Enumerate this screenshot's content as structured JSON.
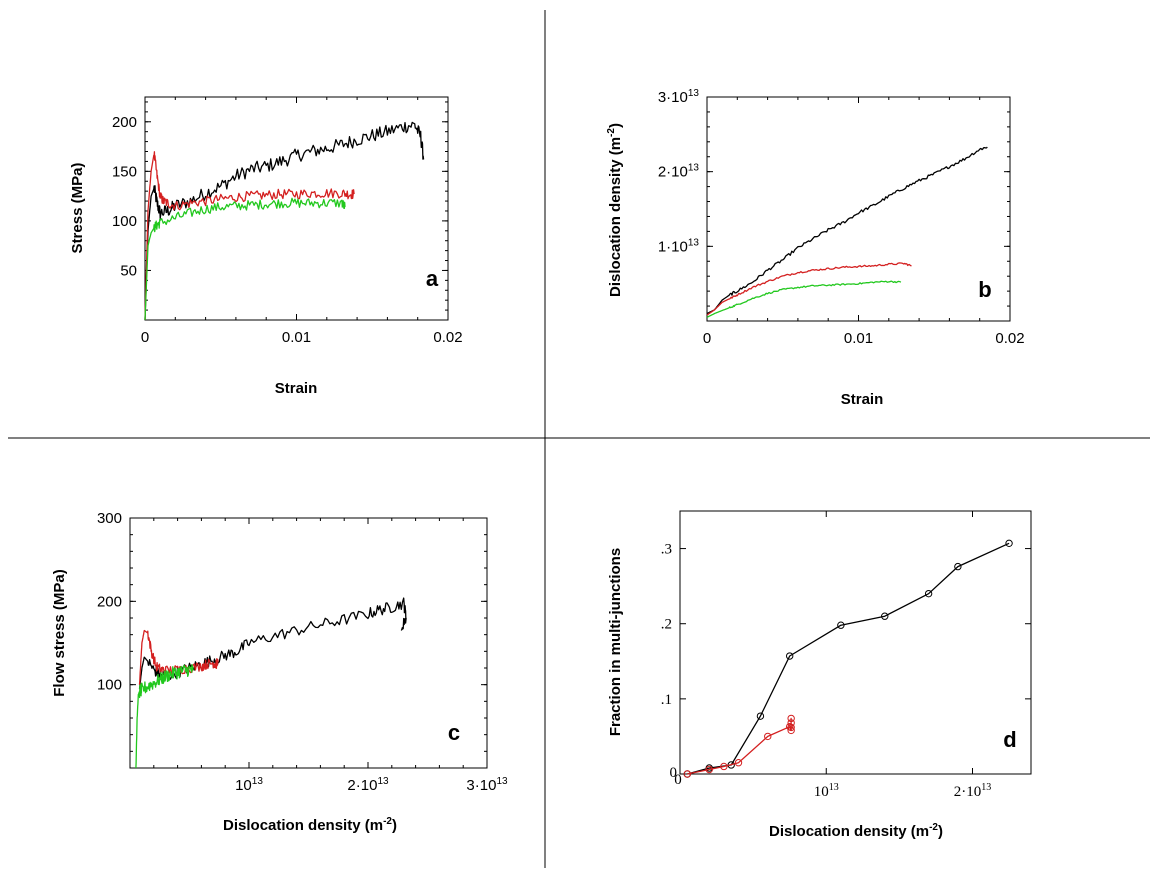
{
  "chart_data": [
    {
      "panel": "a",
      "type": "line",
      "xlabel": "Strain",
      "ylabel": "Stress (MPa)",
      "xlim": [
        0,
        0.02
      ],
      "ylim": [
        0,
        225
      ],
      "xticks": [
        {
          "v": 0,
          "label": "0"
        },
        {
          "v": 0.01,
          "label": "0.01"
        },
        {
          "v": 0.02,
          "label": "0.02"
        }
      ],
      "yticks": [
        {
          "v": 50,
          "label": "50"
        },
        {
          "v": 100,
          "label": "100"
        },
        {
          "v": 150,
          "label": "150"
        },
        {
          "v": 200,
          "label": "200"
        }
      ],
      "grid": false,
      "colors": {
        "black": "#000000",
        "red": "#d42020",
        "green": "#22c81e"
      },
      "series": [
        {
          "color": "#000000",
          "noise": 7,
          "x": [
            0,
            0.0002,
            0.0004,
            0.0006,
            0.0008,
            0.001,
            0.0015,
            0.002,
            0.003,
            0.004,
            0.005,
            0.006,
            0.007,
            0.008,
            0.009,
            0.01,
            0.011,
            0.012,
            0.013,
            0.014,
            0.015,
            0.016,
            0.017,
            0.0178,
            0.0182,
            0.0184
          ],
          "y": [
            0,
            90,
            125,
            133,
            118,
            108,
            110,
            115,
            120,
            128,
            135,
            145,
            152,
            155,
            160,
            166,
            170,
            173,
            177,
            182,
            186,
            190,
            195,
            197,
            185,
            162
          ]
        },
        {
          "color": "#d42020",
          "noise": 5,
          "x": [
            0,
            0.0002,
            0.0004,
            0.0006,
            0.0008,
            0.001,
            0.0012,
            0.0015,
            0.002,
            0.003,
            0.004,
            0.005,
            0.006,
            0.007,
            0.008,
            0.009,
            0.01,
            0.011,
            0.012,
            0.013,
            0.0135,
            0.0138
          ],
          "y": [
            0,
            110,
            150,
            168,
            145,
            125,
            120,
            118,
            115,
            118,
            120,
            122,
            124,
            125,
            126,
            127,
            127,
            128,
            128,
            128,
            127,
            127
          ]
        },
        {
          "color": "#22c81e",
          "noise": 5,
          "x": [
            0,
            0.0002,
            0.0004,
            0.0006,
            0.0008,
            0.001,
            0.002,
            0.003,
            0.004,
            0.005,
            0.006,
            0.007,
            0.008,
            0.009,
            0.01,
            0.011,
            0.012,
            0.013,
            0.0132
          ],
          "y": [
            0,
            75,
            88,
            93,
            96,
            98,
            103,
            108,
            112,
            114,
            115,
            116,
            117,
            118,
            118,
            118,
            118,
            118,
            114
          ]
        }
      ]
    },
    {
      "panel": "b",
      "type": "line",
      "xlabel": "Strain",
      "ylabel": "Dislocation density (m⁻²)",
      "xlim": [
        0,
        0.02
      ],
      "ylim": [
        0,
        30000000000000.0
      ],
      "xticks": [
        {
          "v": 0,
          "label": "0"
        },
        {
          "v": 0.01,
          "label": "0.01"
        },
        {
          "v": 0.02,
          "label": "0.02"
        }
      ],
      "yticks": [
        {
          "v": 10000000000000.0,
          "label": "1·10¹³"
        },
        {
          "v": 20000000000000.0,
          "label": "2·10¹³"
        },
        {
          "v": 30000000000000.0,
          "label": "3·10¹³"
        }
      ],
      "grid": false,
      "colors": {
        "black": "#000000",
        "red": "#d42020",
        "green": "#22c81e"
      },
      "series": [
        {
          "color": "#000000",
          "noise": 200000000000.0,
          "x": [
            0,
            0.0005,
            0.001,
            0.0015,
            0.002,
            0.003,
            0.004,
            0.005,
            0.006,
            0.007,
            0.008,
            0.009,
            0.01,
            0.011,
            0.012,
            0.013,
            0.014,
            0.015,
            0.016,
            0.017,
            0.018,
            0.0185
          ],
          "y": [
            1000000000000.0,
            1500000000000.0,
            2800000000000.0,
            3500000000000.0,
            4000000000000.0,
            5200000000000.0,
            6800000000000.0,
            8200000000000.0,
            9800000000000.0,
            11000000000000.0,
            12200000000000.0,
            13200000000000.0,
            14500000000000.0,
            15500000000000.0,
            16700000000000.0,
            17800000000000.0,
            18800000000000.0,
            19700000000000.0,
            20700000000000.0,
            21700000000000.0,
            23000000000000.0,
            23300000000000.0
          ]
        },
        {
          "color": "#d42020",
          "noise": 120000000000.0,
          "x": [
            0,
            0.0005,
            0.001,
            0.0015,
            0.002,
            0.003,
            0.004,
            0.005,
            0.006,
            0.007,
            0.008,
            0.009,
            0.01,
            0.011,
            0.012,
            0.013,
            0.0135
          ],
          "y": [
            800000000000.0,
            1500000000000.0,
            2500000000000.0,
            3000000000000.0,
            3500000000000.0,
            4500000000000.0,
            5300000000000.0,
            6000000000000.0,
            6500000000000.0,
            6800000000000.0,
            7000000000000.0,
            7200000000000.0,
            7300000000000.0,
            7400000000000.0,
            7600000000000.0,
            7700000000000.0,
            7400000000000.0
          ]
        },
        {
          "color": "#22c81e",
          "noise": 100000000000.0,
          "x": [
            0,
            0.0005,
            0.001,
            0.0015,
            0.002,
            0.003,
            0.004,
            0.005,
            0.006,
            0.007,
            0.008,
            0.009,
            0.01,
            0.011,
            0.012,
            0.0128
          ],
          "y": [
            500000000000.0,
            1000000000000.0,
            1400000000000.0,
            1800000000000.0,
            2200000000000.0,
            3000000000000.0,
            3700000000000.0,
            4200000000000.0,
            4500000000000.0,
            4700000000000.0,
            4800000000000.0,
            4900000000000.0,
            5000000000000.0,
            5200000000000.0,
            5300000000000.0,
            5200000000000.0
          ]
        }
      ]
    },
    {
      "panel": "c",
      "type": "line",
      "xlabel": "Dislocation density (m⁻²)",
      "ylabel": "Flow stress (MPa)",
      "xlim": [
        0,
        30000000000000.0
      ],
      "ylim": [
        0,
        300
      ],
      "xticks": [
        {
          "v": 10000000000000.0,
          "label": "10¹³"
        },
        {
          "v": 20000000000000.0,
          "label": "2·10¹³"
        },
        {
          "v": 30000000000000.0,
          "label": "3·10¹³"
        }
      ],
      "yticks": [
        {
          "v": 100,
          "label": "100"
        },
        {
          "v": 200,
          "label": "200"
        },
        {
          "v": 300,
          "label": "300"
        }
      ],
      "grid": false,
      "colors": {
        "black": "#000000",
        "red": "#d42020",
        "green": "#22c81e"
      },
      "series": [
        {
          "color": "#000000",
          "noise": 7,
          "x": [
            800000000000.0,
            1000000000000.0,
            1200000000000.0,
            1500000000000.0,
            2000000000000.0,
            2500000000000.0,
            3000000000000.0,
            4000000000000.0,
            5000000000000.0,
            6000000000000.0,
            7000000000000.0,
            8000000000000.0,
            9000000000000.0,
            10000000000000.0,
            12000000000000.0,
            14000000000000.0,
            16000000000000.0,
            18000000000000.0,
            20000000000000.0,
            21000000000000.0,
            22000000000000.0,
            23000000000000.0,
            23200000000000.0,
            22800000000000.0
          ],
          "y": [
            95,
            120,
            133,
            128,
            118,
            112,
            110,
            115,
            120,
            125,
            130,
            135,
            140,
            150,
            158,
            165,
            172,
            178,
            185,
            190,
            193,
            198,
            182,
            165
          ]
        },
        {
          "color": "#d42020",
          "noise": 6,
          "x": [
            800000000000.0,
            1000000000000.0,
            1200000000000.0,
            1500000000000.0,
            1800000000000.0,
            2200000000000.0,
            2600000000000.0,
            3000000000000.0,
            4000000000000.0,
            5000000000000.0,
            6000000000000.0,
            6500000000000.0,
            7000000000000.0,
            7200000000000.0,
            7400000000000.0
          ],
          "y": [
            100,
            150,
            165,
            162,
            140,
            122,
            118,
            117,
            118,
            120,
            122,
            125,
            126,
            124,
            127
          ]
        },
        {
          "color": "#22c81e",
          "noise": 8,
          "x": [
            500000000000.0,
            600000000000.0,
            700000000000.0,
            800000000000.0,
            900000000000.0,
            1000000000000.0,
            1500000000000.0,
            2000000000000.0,
            2500000000000.0,
            3000000000000.0,
            3500000000000.0,
            4000000000000.0,
            4500000000000.0,
            5000000000000.0,
            5300000000000.0
          ],
          "y": [
            0,
            60,
            88,
            92,
            93,
            94,
            98,
            102,
            106,
            110,
            113,
            115,
            117,
            118,
            117
          ]
        }
      ]
    },
    {
      "panel": "d",
      "type": "line",
      "xlabel": "Dislocation density (m⁻²)",
      "ylabel": "Fraction in multi-junctions",
      "xlim": [
        0,
        24000000000000.0
      ],
      "ylim": [
        0,
        0.35
      ],
      "xticks": [
        {
          "v": 0,
          "label": "0"
        },
        {
          "v": 10000000000000.0,
          "label": "10¹³"
        },
        {
          "v": 20000000000000.0,
          "label": "2·10¹³"
        }
      ],
      "yticks": [
        {
          "v": 0,
          "label": "0"
        },
        {
          "v": 0.1,
          "label": ".1"
        },
        {
          "v": 0.2,
          "label": ".2"
        },
        {
          "v": 0.3,
          "label": ".3"
        }
      ],
      "grid": false,
      "colors": {
        "black": "#000000",
        "red": "#d42020"
      },
      "series": [
        {
          "color": "#000000",
          "marker": "circle",
          "x": [
            500000000000.0,
            2000000000000.0,
            3500000000000.0,
            5500000000000.0,
            7500000000000.0,
            11000000000000.0,
            14000000000000.0,
            17000000000000.0,
            19000000000000.0,
            22500000000000.0
          ],
          "y": [
            0,
            0.008,
            0.012,
            0.077,
            0.157,
            0.198,
            0.21,
            0.24,
            0.276,
            0.307
          ]
        },
        {
          "color": "#d42020",
          "marker": "circle",
          "x": [
            500000000000.0,
            2000000000000.0,
            3000000000000.0,
            4000000000000.0,
            6000000000000.0,
            7500000000000.0,
            7600000000000.0,
            7600000000000.0,
            7600000000000.0,
            7600000000000.0
          ],
          "y": [
            0,
            0.006,
            0.01,
            0.015,
            0.05,
            0.063,
            0.058,
            0.068,
            0.074,
            0.062
          ]
        }
      ]
    }
  ],
  "labels": {
    "a": {
      "letter": "a",
      "xlabel": "Strain",
      "ylabel": "Stress (MPa)"
    },
    "b": {
      "letter": "b",
      "xlabel": "Strain",
      "ylabel": "Dislocation density (m"
    },
    "c": {
      "letter": "c",
      "xlabel": "Dislocation density (m",
      "ylabel": "Flow stress (MPa)"
    },
    "d": {
      "letter": "d",
      "xlabel": "Dislocation density (m",
      "ylabel": "Fraction in multi-junctions"
    },
    "exp": "-2",
    "close_paren": ")"
  }
}
